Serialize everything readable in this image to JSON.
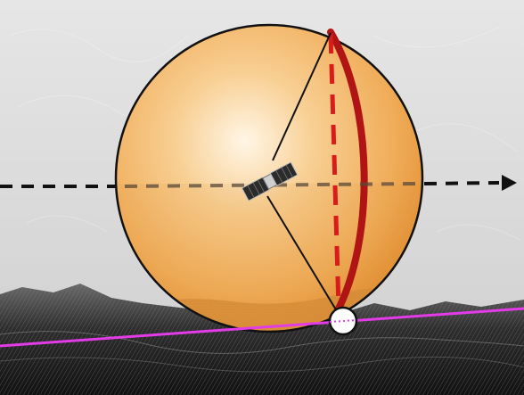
{
  "diagram": {
    "background_color": "#dcdcdc",
    "sphere": {
      "fill_light": "#fff3dc",
      "fill_mid": "#f6c27c",
      "fill_dark": "#e79a3a",
      "outline_color": "#111111"
    },
    "line_of_sight": {
      "color": "#111111",
      "style": "dashed",
      "direction": "right",
      "arrow": true
    },
    "great_circle": {
      "solid_color": "#b01414",
      "dashed_color": "#d81b1b"
    },
    "spacecraft": {
      "icon": "cubesat-icon",
      "panel_color": "#2b2b2b",
      "bus_color": "#cfcfcf"
    },
    "horizon_line": {
      "color": "#e23be8"
    },
    "contact_point": {
      "fill": "#ffffff",
      "outline": "#111111"
    },
    "terrain": {
      "icon": "mountain-terrain",
      "color": "#3a3a3a"
    }
  }
}
